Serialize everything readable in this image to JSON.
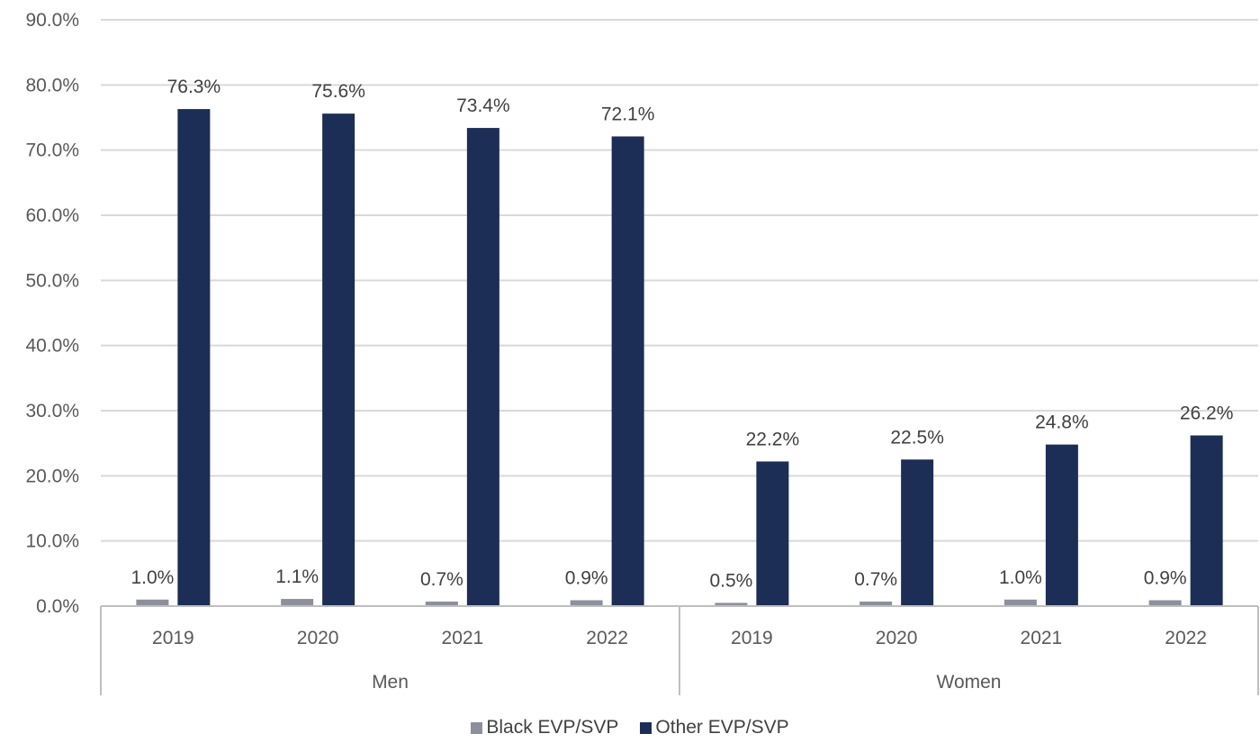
{
  "colors": {
    "black_series": "#8c909c",
    "other_series": "#1c2e55",
    "grid": "#d9d9d9",
    "axis": "#bfbfbf"
  },
  "legend": {
    "items": [
      {
        "label": "Black EVP/SVP",
        "color": "#8c909c"
      },
      {
        "label": "Other EVP/SVP",
        "color": "#1c2e55"
      }
    ]
  },
  "chart_data": {
    "type": "bar",
    "title": "",
    "xlabel": "",
    "ylabel": "",
    "ylim": [
      0,
      90
    ],
    "y_ticks": [
      "0.0%",
      "10.0%",
      "20.0%",
      "30.0%",
      "40.0%",
      "50.0%",
      "60.0%",
      "70.0%",
      "80.0%",
      "90.0%"
    ],
    "grid": true,
    "legend_position": "bottom",
    "groups": [
      {
        "label": "Men",
        "categories": [
          "2019",
          "2020",
          "2021",
          "2022"
        ]
      },
      {
        "label": "Women",
        "categories": [
          "2019",
          "2020",
          "2021",
          "2022"
        ]
      }
    ],
    "series": [
      {
        "name": "Black EVP/SVP",
        "values": [
          1.0,
          1.1,
          0.7,
          0.9,
          0.5,
          0.7,
          1.0,
          0.9
        ],
        "labels": [
          "1.0%",
          "1.1%",
          "0.7%",
          "0.9%",
          "0.5%",
          "0.7%",
          "1.0%",
          "0.9%"
        ]
      },
      {
        "name": "Other EVP/SVP",
        "values": [
          76.3,
          75.6,
          73.4,
          72.1,
          22.2,
          22.5,
          24.8,
          26.2
        ],
        "labels": [
          "76.3%",
          "75.6%",
          "73.4%",
          "72.1%",
          "22.2%",
          "22.5%",
          "24.8%",
          "26.2%"
        ]
      }
    ]
  }
}
